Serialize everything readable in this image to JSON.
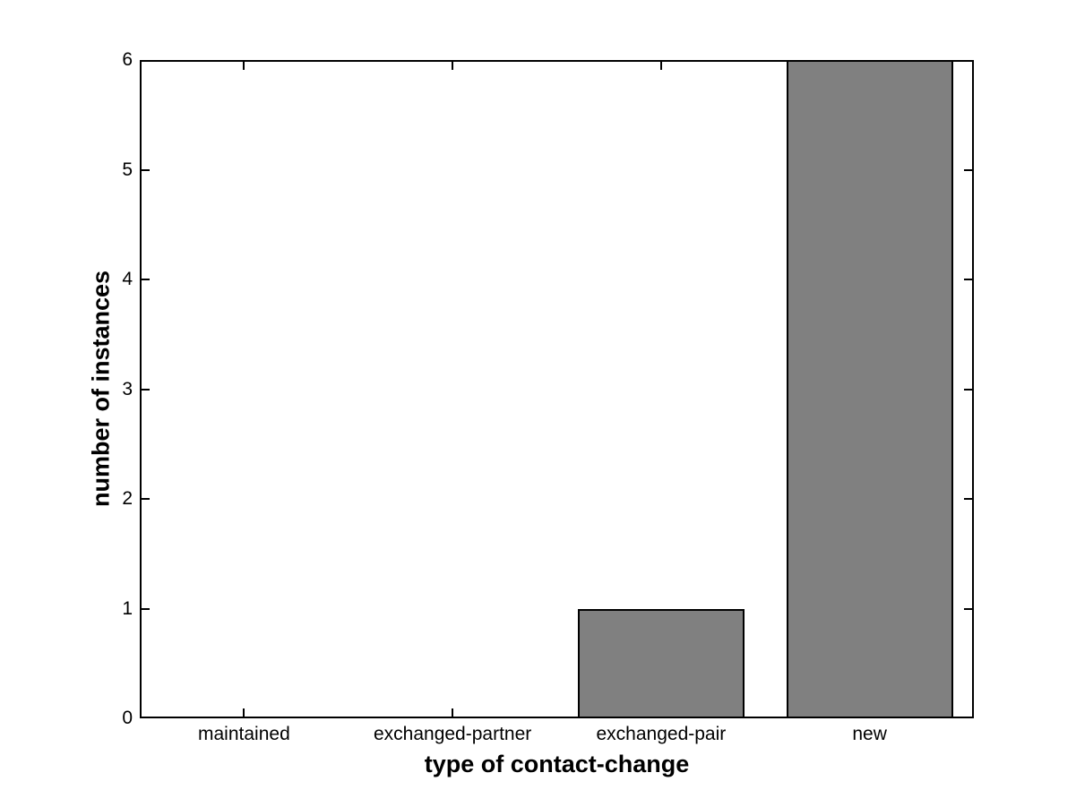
{
  "chart_data": {
    "type": "bar",
    "title": "",
    "xlabel": "type of contact-change",
    "ylabel": "number of instances",
    "categories": [
      "maintained",
      "exchanged-partner",
      "exchanged-pair",
      "new"
    ],
    "values": [
      0,
      0,
      1,
      6
    ],
    "ylim": [
      0,
      6
    ],
    "yticks": [
      0,
      1,
      2,
      3,
      4,
      5,
      6
    ],
    "bar_width_fraction": 0.8,
    "grid": false,
    "legend": "none",
    "colors": {
      "bar_fill": "#808080",
      "bar_edge": "#000000",
      "axis": "#000000",
      "background": "#ffffff",
      "text": "#000000"
    }
  }
}
